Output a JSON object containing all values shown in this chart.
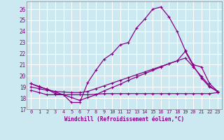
{
  "xlabel": "Windchill (Refroidissement éolien,°C)",
  "bg_color": "#cce8f0",
  "grid_color": "#ffffff",
  "line_color": "#880088",
  "xlim": [
    -0.5,
    23.5
  ],
  "ylim": [
    17,
    26.7
  ],
  "xticks": [
    0,
    1,
    2,
    3,
    4,
    5,
    6,
    7,
    8,
    9,
    10,
    11,
    12,
    13,
    14,
    15,
    16,
    17,
    18,
    19,
    20,
    21,
    22,
    23
  ],
  "yticks": [
    17,
    18,
    19,
    20,
    21,
    22,
    23,
    24,
    25,
    26
  ],
  "line1_x": [
    0,
    1,
    2,
    3,
    4,
    5,
    6,
    7,
    8,
    9,
    10,
    11,
    12,
    13,
    14,
    15,
    16,
    17,
    18,
    19,
    20,
    21,
    22,
    23
  ],
  "line1_y": [
    19.3,
    19.0,
    18.8,
    18.4,
    18.3,
    17.6,
    17.6,
    19.4,
    20.5,
    21.5,
    22.0,
    22.8,
    23.0,
    24.3,
    25.1,
    26.0,
    26.2,
    25.3,
    24.0,
    22.3,
    21.0,
    20.8,
    19.3,
    18.6
  ],
  "line2_x": [
    0,
    1,
    2,
    3,
    4,
    5,
    6,
    7,
    8,
    9,
    10,
    11,
    12,
    13,
    14,
    15,
    16,
    17,
    18,
    19,
    20,
    21,
    22,
    23
  ],
  "line2_y": [
    19.0,
    18.85,
    18.7,
    18.6,
    18.55,
    18.5,
    18.5,
    18.6,
    18.85,
    19.1,
    19.35,
    19.6,
    19.85,
    20.1,
    20.35,
    20.6,
    20.85,
    21.1,
    21.35,
    21.6,
    20.8,
    19.95,
    19.1,
    18.55
  ],
  "line3_x": [
    0,
    1,
    2,
    3,
    4,
    5,
    6,
    7,
    8,
    9,
    10,
    11,
    12,
    13,
    14,
    15,
    16,
    17,
    18,
    19,
    20,
    21,
    22,
    23
  ],
  "line3_y": [
    19.3,
    19.05,
    18.8,
    18.55,
    18.3,
    18.05,
    17.8,
    18.05,
    18.3,
    18.65,
    18.95,
    19.25,
    19.6,
    19.9,
    20.2,
    20.5,
    20.8,
    21.1,
    21.35,
    22.2,
    20.9,
    19.8,
    19.0,
    18.6
  ],
  "line4_x": [
    0,
    1,
    2,
    3,
    4,
    5,
    6,
    7,
    8,
    9,
    10,
    11,
    12,
    13,
    14,
    15,
    16,
    17,
    18,
    19,
    20,
    21,
    22,
    23
  ],
  "line4_y": [
    18.7,
    18.5,
    18.3,
    18.3,
    18.3,
    18.3,
    18.3,
    18.3,
    18.35,
    18.4,
    18.4,
    18.4,
    18.4,
    18.4,
    18.4,
    18.4,
    18.4,
    18.4,
    18.4,
    18.4,
    18.4,
    18.4,
    18.4,
    18.5
  ]
}
